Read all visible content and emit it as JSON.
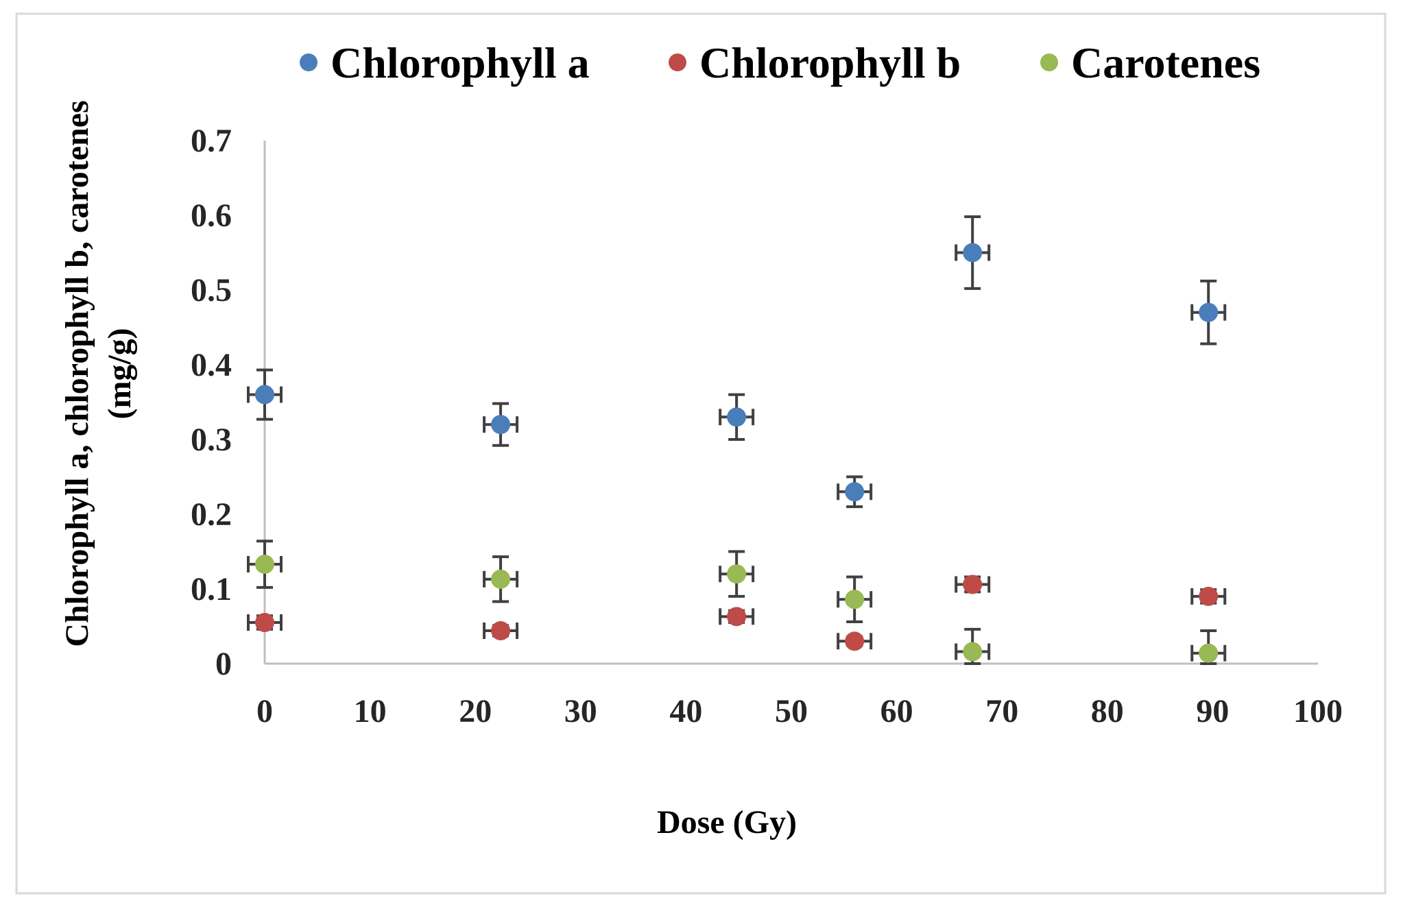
{
  "chart_data": {
    "type": "scatter",
    "title": "",
    "xlabel": "Dose (Gy)",
    "ylabel_lines": [
      "Chlorophyll a, chlorophyll b, carotenes",
      "(mg/g)"
    ],
    "xlim": [
      0,
      100
    ],
    "ylim": [
      0,
      0.7
    ],
    "x_ticks": [
      0,
      10,
      20,
      30,
      40,
      50,
      60,
      70,
      80,
      90,
      100
    ],
    "y_ticks": [
      0,
      0.1,
      0.2,
      0.3,
      0.4,
      0.5,
      0.6,
      0.7
    ],
    "x_tick_labels": [
      "0",
      "10",
      "20",
      "30",
      "40",
      "50",
      "60",
      "70",
      "80",
      "90",
      "100"
    ],
    "y_tick_labels": [
      "0",
      "0.1",
      "0.2",
      "0.3",
      "0.4",
      "0.5",
      "0.6",
      "0.7"
    ],
    "grid": false,
    "legend_position": "top",
    "x": [
      0,
      22.4,
      44.8,
      56,
      67.2,
      89.6
    ],
    "series": [
      {
        "name": "Chlorophyll a",
        "color": "#4a7ebb",
        "values": [
          0.36,
          0.32,
          0.33,
          0.23,
          0.55,
          0.47
        ],
        "errors": [
          0.033,
          0.028,
          0.03,
          0.02,
          0.048,
          0.042
        ]
      },
      {
        "name": "Chlorophyll b",
        "color": "#be4b48",
        "values": [
          0.055,
          0.044,
          0.063,
          0.03,
          0.106,
          0.09
        ],
        "errors": [
          0.009,
          0.007,
          0.008,
          0.006,
          0.01,
          0.009
        ]
      },
      {
        "name": "Carotenes",
        "color": "#98b954",
        "values": [
          0.133,
          0.113,
          0.12,
          0.086,
          0.016,
          0.014
        ],
        "errors": [
          0.031,
          0.03,
          0.03,
          0.03,
          0.03,
          0.03
        ]
      }
    ]
  }
}
